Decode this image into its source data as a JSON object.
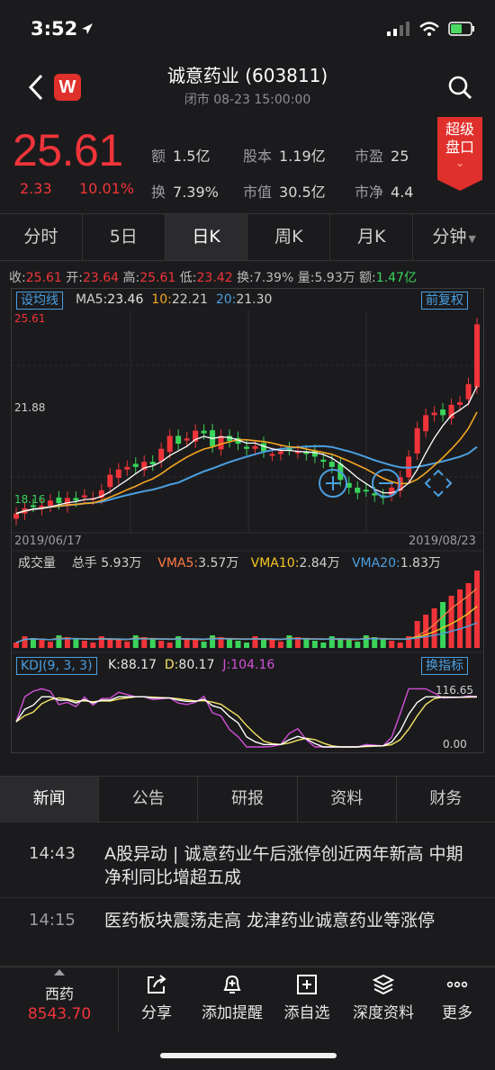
{
  "status": {
    "time": "3:52"
  },
  "header": {
    "title": "诚意药业 (603811)",
    "subtitle": "闭市 08-23 15:00:00"
  },
  "quote": {
    "price": "25.61",
    "change": "2.33",
    "change_pct": "10.01%",
    "stats": [
      {
        "k": "额",
        "v": "1.5亿"
      },
      {
        "k": "股本",
        "v": "1.19亿"
      },
      {
        "k": "市盈",
        "v": "25"
      },
      {
        "k": "换",
        "v": "7.39%"
      },
      {
        "k": "市值",
        "v": "30.5亿"
      },
      {
        "k": "市净",
        "v": "4.4"
      }
    ],
    "super_label_1": "超级",
    "super_label_2": "盘口"
  },
  "tabs": [
    "分时",
    "5日",
    "日K",
    "周K",
    "月K",
    "分钟"
  ],
  "active_tab": "日K",
  "infoline": {
    "shou_k": "收:",
    "shou": "25.61",
    "kai_k": "开:",
    "kai": "23.64",
    "gao_k": "高:",
    "gao": "25.61",
    "di_k": "低:",
    "di": "23.42",
    "huan_k": "换:",
    "huan": "7.39%",
    "liang_k": "量:",
    "liang": "5.93万",
    "e_k": "额:",
    "e": "1.47亿"
  },
  "chart": {
    "ma_button": "设均线",
    "adj_button": "前复权",
    "ind_button": "换指标",
    "ma5_k": "MA5:",
    "ma5": "23.46",
    "ma10_k": "10:",
    "ma10": "22.21",
    "ma20_k": "20:",
    "ma20": "21.30",
    "price_hi": "25.61",
    "price_mid": "21.88",
    "price_lo": "18.16",
    "date_start": "2019/06/17",
    "date_end": "2019/08/23",
    "vol_label": "成交量",
    "vol_total_k": "总手",
    "vol_total": "5.93万",
    "vma5_k": "VMA5:",
    "vma5": "3.57万",
    "vma10_k": "VMA10:",
    "vma10": "2.84万",
    "vma20_k": "VMA20:",
    "vma20": "1.83万",
    "kdj_label": "KDJ(9, 3, 3)",
    "k_k": "K:",
    "k": "88.17",
    "d_k": "D:",
    "d": "80.17",
    "j_k": "J:",
    "j": "104.16",
    "kdj_hi": "116.65",
    "kdj_lo": "0.00"
  },
  "colors": {
    "up": "#f0343a",
    "down": "#3ad45a",
    "ma5": "#ffffff",
    "ma10": "#f5a623",
    "ma20": "#4b9fe0",
    "j": "#d34fd8"
  },
  "chart_data": {
    "type": "line",
    "title": "",
    "x_range": [
      "2019/06/17",
      "2019/08/23"
    ],
    "y_range": [
      18.16,
      25.61
    ],
    "close_approx": [
      18.3,
      18.5,
      18.6,
      18.6,
      18.8,
      18.7,
      18.9,
      18.8,
      19.0,
      18.9,
      19.2,
      19.8,
      20.0,
      20.1,
      20.1,
      20.3,
      20.2,
      20.8,
      21.3,
      21.0,
      21.2,
      21.5,
      21.4,
      20.9,
      21.3,
      21.1,
      21.0,
      20.8,
      20.9,
      20.7,
      20.6,
      20.7,
      20.8,
      20.7,
      20.6,
      20.5,
      20.3,
      20.1,
      19.6,
      19.3,
      19.1,
      19.2,
      19.0,
      18.9,
      19.3,
      19.7,
      20.5,
      21.6,
      22.1,
      22.2,
      22.1,
      22.5,
      22.6,
      23.3,
      25.61
    ],
    "series": [
      {
        "name": "MA5",
        "last": 23.46
      },
      {
        "name": "MA10",
        "last": 22.21
      },
      {
        "name": "MA20",
        "last": 21.3
      }
    ]
  },
  "info_tabs": [
    "新闻",
    "公告",
    "研报",
    "资料",
    "财务"
  ],
  "news": [
    {
      "time": "14:43",
      "title": "A股异动 | 诚意药业午后涨停创近两年新高 中期净利同比增超五成"
    },
    {
      "time": "14:15",
      "title": "医药板块震荡走高 龙津药业诚意药业等涨停"
    }
  ],
  "toolbar": {
    "sector_name": "西药",
    "sector_value": "8543.70",
    "items": [
      "分享",
      "添加提醒",
      "添自选",
      "深度资料",
      "更多"
    ]
  }
}
